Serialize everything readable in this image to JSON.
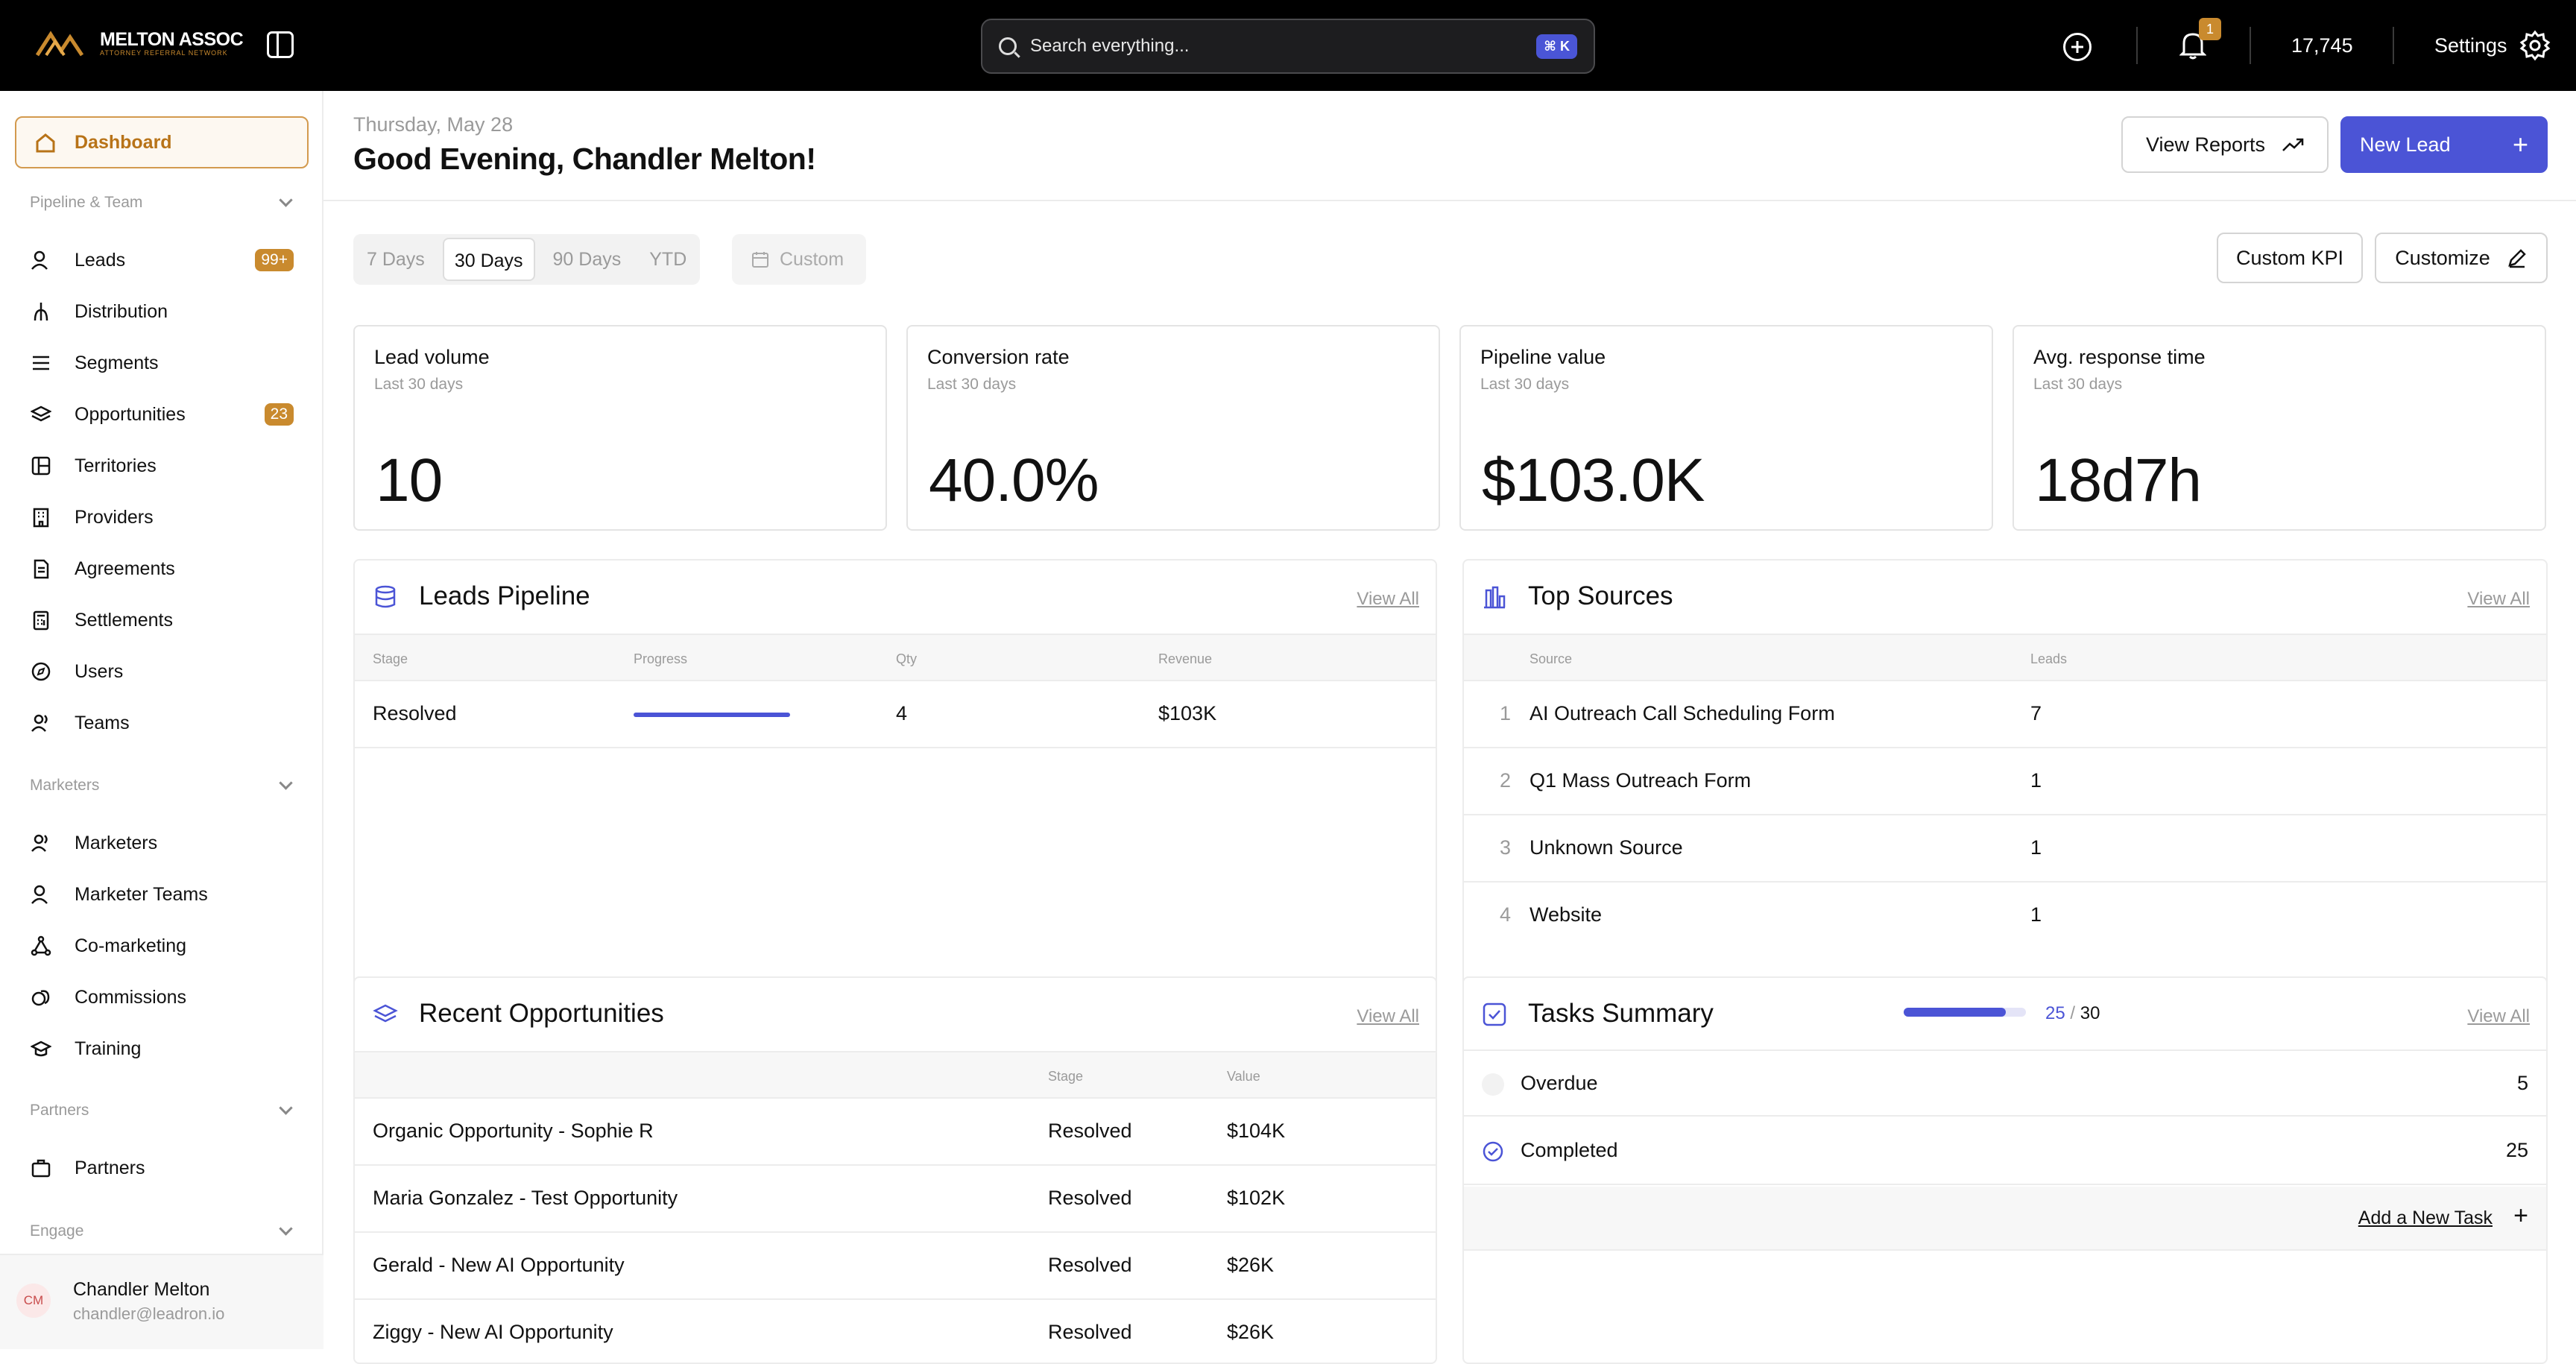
{
  "topbar": {
    "brand_name": "MELTON ASSOC",
    "brand_sub": "ATTORNEY REFERRAL NETWORK",
    "search_placeholder": "Search everything...",
    "search_shortcut": "⌘ K",
    "notifications_count": "1",
    "credits": "17,745",
    "settings_label": "Settings",
    "accent_color": "#c98a2e"
  },
  "sidebar": {
    "active": {
      "label": "Dashboard",
      "icon": "home-icon"
    },
    "sections": [
      {
        "label": "Pipeline & Team",
        "items": [
          {
            "label": "Leads",
            "icon": "users-icon",
            "badge": "99+"
          },
          {
            "label": "Distribution",
            "icon": "fork-icon",
            "badge": ""
          },
          {
            "label": "Segments",
            "icon": "list-icon",
            "badge": ""
          },
          {
            "label": "Opportunities",
            "icon": "layers-icon",
            "badge": "23"
          },
          {
            "label": "Territories",
            "icon": "map-icon",
            "badge": ""
          },
          {
            "label": "Providers",
            "icon": "building-icon",
            "badge": ""
          },
          {
            "label": "Agreements",
            "icon": "document-icon",
            "badge": ""
          },
          {
            "label": "Settlements",
            "icon": "calculator-icon",
            "badge": ""
          },
          {
            "label": "Users",
            "icon": "compass-icon",
            "badge": ""
          },
          {
            "label": "Teams",
            "icon": "team-icon",
            "badge": ""
          }
        ]
      },
      {
        "label": "Marketers",
        "items": [
          {
            "label": "Marketers",
            "icon": "users-icon"
          },
          {
            "label": "Marketer Teams",
            "icon": "team-icon"
          },
          {
            "label": "Co-marketing",
            "icon": "network-icon"
          },
          {
            "label": "Commissions",
            "icon": "coins-icon"
          },
          {
            "label": "Training",
            "icon": "graduation-cap-icon"
          }
        ]
      },
      {
        "label": "Partners",
        "items": [
          {
            "label": "Partners",
            "icon": "briefcase-icon"
          }
        ]
      },
      {
        "label": "Engage",
        "items": []
      }
    ],
    "user": {
      "initials": "CM",
      "name": "Chandler Melton",
      "email": "chandler@leadron.io"
    }
  },
  "header": {
    "date": "Thursday, May 28",
    "greeting": "Good Evening, Chandler Melton!",
    "view_reports": "View Reports",
    "new_lead": "New Lead"
  },
  "filters": {
    "ranges": [
      "7 Days",
      "30 Days",
      "90 Days",
      "YTD"
    ],
    "selected": "30 Days",
    "custom": "Custom",
    "custom_kpi": "Custom KPI",
    "customize": "Customize"
  },
  "kpis": [
    {
      "title": "Lead volume",
      "subtitle": "Last 30 days",
      "value": "10"
    },
    {
      "title": "Conversion rate",
      "subtitle": "Last 30 days",
      "value": "40.0%"
    },
    {
      "title": "Pipeline value",
      "subtitle": "Last 30 days",
      "value": "$103.0K"
    },
    {
      "title": "Avg. response time",
      "subtitle": "Last 30 days",
      "value": "18d7h"
    }
  ],
  "leads_pipeline": {
    "title": "Leads Pipeline",
    "view_all": "View All",
    "columns": [
      "Stage",
      "Progress",
      "Qty",
      "Revenue"
    ],
    "rows": [
      {
        "stage": "Resolved",
        "progress": 1.0,
        "qty": "4",
        "revenue": "$103K"
      }
    ]
  },
  "top_sources": {
    "title": "Top Sources",
    "view_all": "View All",
    "columns": [
      "Source",
      "Leads"
    ],
    "rows": [
      {
        "rank": "1",
        "source": "AI Outreach Call Scheduling Form",
        "leads": "7"
      },
      {
        "rank": "2",
        "source": "Q1 Mass Outreach Form",
        "leads": "1"
      },
      {
        "rank": "3",
        "source": "Unknown Source",
        "leads": "1"
      },
      {
        "rank": "4",
        "source": "Website",
        "leads": "1"
      }
    ]
  },
  "recent_opportunities": {
    "title": "Recent Opportunities",
    "view_all": "View All",
    "columns": [
      "Stage",
      "Value"
    ],
    "rows": [
      {
        "name": "Organic Opportunity - Sophie R",
        "stage": "Resolved",
        "value": "$104K"
      },
      {
        "name": "Maria Gonzalez - Test Opportunity",
        "stage": "Resolved",
        "value": "$102K"
      },
      {
        "name": "Gerald - New AI Opportunity",
        "stage": "Resolved",
        "value": "$26K"
      },
      {
        "name": "Ziggy - New AI Opportunity",
        "stage": "Resolved",
        "value": "$26K"
      }
    ]
  },
  "tasks_summary": {
    "title": "Tasks Summary",
    "view_all": "View All",
    "done": "25",
    "separator": "/",
    "total": "30",
    "progress_fraction": 0.833,
    "rows": [
      {
        "label": "Overdue",
        "count": "5"
      },
      {
        "label": "Completed",
        "count": "25"
      }
    ],
    "add_task": "Add a New Task"
  }
}
